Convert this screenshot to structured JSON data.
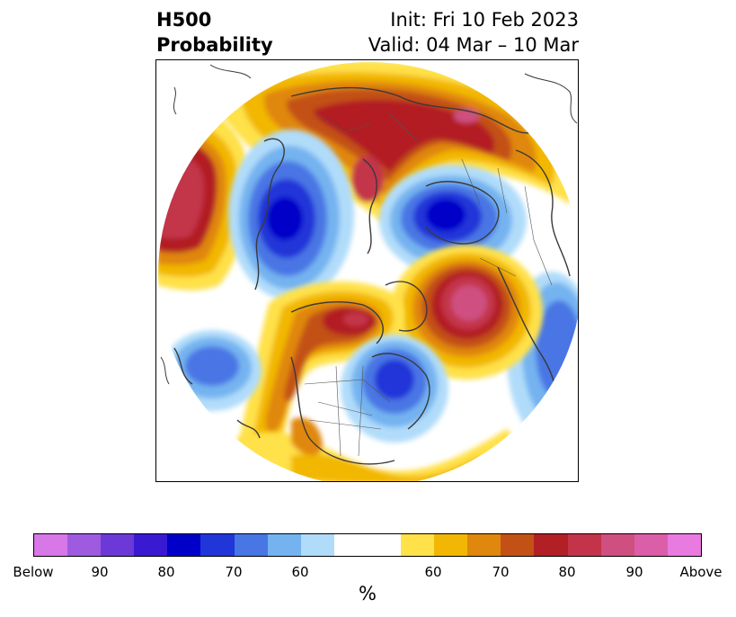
{
  "title": {
    "left_line1": "H500",
    "left_line2": "Probability",
    "right_line1": "Init: Fri 10 Feb 2023",
    "right_line2": "Valid: 04 Mar – 10 Mar"
  },
  "map": {
    "projection": "north-polar-stereographic",
    "description_colors": {
      "above_strong": "#d05a9a",
      "above_high": "#b21f24",
      "above_mid": "#c35116",
      "above_low": "#e0870d",
      "above_weak": "#f2b704",
      "above_faint": "#ffe14a",
      "below_faint": "#b0dcfa",
      "below_weak": "#74b3f0",
      "below_mid": "#4876e4",
      "below_high": "#2136d8",
      "below_strong": "#0000c9"
    }
  },
  "colorbar": {
    "unit": "%",
    "colors": [
      "#d877e8",
      "#9e5be0",
      "#6c39d8",
      "#3a19d2",
      "#0000c9",
      "#2136d8",
      "#4876e4",
      "#74b3f0",
      "#b0dcfa",
      "#ffffff",
      "#ffe14a",
      "#f2b704",
      "#e0870d",
      "#c35116",
      "#b21f24",
      "#c3344a",
      "#cf4f80",
      "#da5ea8",
      "#e87ae0"
    ],
    "tick_labels": [
      "Below",
      "90",
      "80",
      "70",
      "60",
      "60",
      "70",
      "80",
      "90",
      "Above"
    ]
  }
}
